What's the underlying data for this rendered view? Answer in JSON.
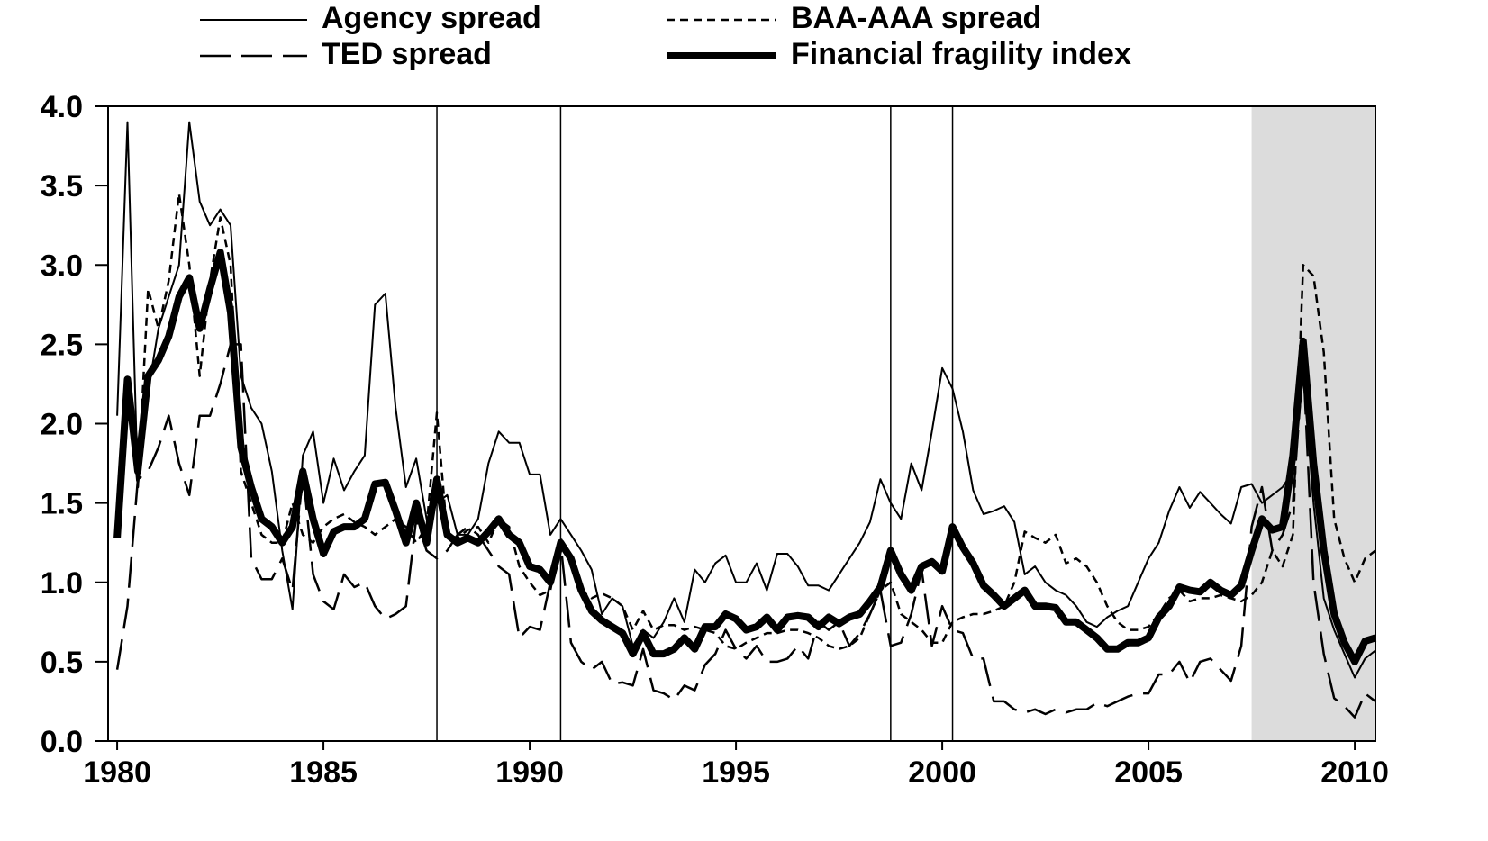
{
  "chart_data": {
    "type": "line",
    "legend": "top",
    "xlim": [
      1979.78,
      2010.5
    ],
    "ylim": [
      0,
      4
    ],
    "xticks": [
      1980,
      1985,
      1990,
      1995,
      2000,
      2005,
      2010
    ],
    "yticks": [
      {
        "value": 0,
        "label": "0.0"
      },
      0.5,
      {
        "value": 1,
        "label": "1.0"
      },
      1.5,
      {
        "value": 2,
        "label": "2.0"
      },
      2.5,
      {
        "value": 3,
        "label": "3.0"
      },
      3.5,
      {
        "value": 4,
        "label": "4.0"
      }
    ],
    "vlines": [
      1987.75,
      1990.75,
      1998.75,
      2000.25
    ],
    "shade": [
      2007.5,
      2010.5
    ],
    "shade_color": "#dcdcdc",
    "x": [
      1980,
      1980.25,
      1980.5,
      1980.75,
      1981,
      1981.25,
      1981.5,
      1981.75,
      1982,
      1982.25,
      1982.5,
      1982.75,
      1983,
      1983.25,
      1983.5,
      1983.75,
      1984,
      1984.25,
      1984.5,
      1984.75,
      1985,
      1985.25,
      1985.5,
      1985.75,
      1986,
      1986.25,
      1986.5,
      1986.75,
      1987,
      1987.25,
      1987.5,
      1987.75,
      1988,
      1988.25,
      1988.5,
      1988.75,
      1989,
      1989.25,
      1989.5,
      1989.75,
      1990,
      1990.25,
      1990.5,
      1990.75,
      1991,
      1991.25,
      1991.5,
      1991.75,
      1992,
      1992.25,
      1992.5,
      1992.75,
      1993,
      1993.25,
      1993.5,
      1993.75,
      1994,
      1994.25,
      1994.5,
      1994.75,
      1995,
      1995.25,
      1995.5,
      1995.75,
      1996,
      1996.25,
      1996.5,
      1996.75,
      1997,
      1997.25,
      1997.5,
      1997.75,
      1998,
      1998.25,
      1998.5,
      1998.75,
      1999,
      1999.25,
      1999.5,
      1999.75,
      2000,
      2000.25,
      2000.5,
      2000.75,
      2001,
      2001.25,
      2001.5,
      2001.75,
      2002,
      2002.25,
      2002.5,
      2002.75,
      2003,
      2003.25,
      2003.5,
      2003.75,
      2004,
      2004.25,
      2004.5,
      2004.75,
      2005,
      2005.25,
      2005.5,
      2005.75,
      2006,
      2006.25,
      2006.5,
      2006.75,
      2007,
      2007.25,
      2007.5,
      2007.75,
      2008,
      2008.25,
      2008.5,
      2008.75,
      2009,
      2009.25,
      2009.5,
      2009.75,
      2010,
      2010.25,
      2010.5
    ],
    "series": [
      {
        "name": "Agency spread",
        "color": "#000000",
        "style": "solid",
        "width": 2,
        "values": [
          2.05,
          3.9,
          1.6,
          2.2,
          2.6,
          2.8,
          3.0,
          3.9,
          3.4,
          3.25,
          3.35,
          3.25,
          2.3,
          2.1,
          2.0,
          1.7,
          1.2,
          0.83,
          1.8,
          1.95,
          1.5,
          1.78,
          1.58,
          1.7,
          1.8,
          2.75,
          2.82,
          2.1,
          1.6,
          1.78,
          1.4,
          1.5,
          1.55,
          1.3,
          1.3,
          1.4,
          1.75,
          1.95,
          1.88,
          1.88,
          1.68,
          1.68,
          1.3,
          1.4,
          1.3,
          1.2,
          1.08,
          0.8,
          0.9,
          0.85,
          0.6,
          0.7,
          0.65,
          0.75,
          0.9,
          0.75,
          1.08,
          1.0,
          1.12,
          1.17,
          1.0,
          1.0,
          1.12,
          0.95,
          1.18,
          1.18,
          1.1,
          0.98,
          0.98,
          0.95,
          1.05,
          1.15,
          1.25,
          1.38,
          1.65,
          1.5,
          1.4,
          1.75,
          1.58,
          1.95,
          2.35,
          2.22,
          1.95,
          1.58,
          1.43,
          1.45,
          1.48,
          1.38,
          1.05,
          1.1,
          1.0,
          0.95,
          0.92,
          0.85,
          0.75,
          0.72,
          0.78,
          0.82,
          0.85,
          1.0,
          1.15,
          1.25,
          1.45,
          1.6,
          1.47,
          1.57,
          1.5,
          1.43,
          1.37,
          1.6,
          1.62,
          1.5,
          1.55,
          1.6,
          1.7,
          2.3,
          1.5,
          0.9,
          0.7,
          0.55,
          0.4,
          0.52,
          0.57
        ]
      },
      {
        "name": "BAA-AAA spread",
        "color": "#000000",
        "style": "dash",
        "width": 2.5,
        "values": [
          1.3,
          2.3,
          1.6,
          2.85,
          2.6,
          2.9,
          3.45,
          3.0,
          2.3,
          2.9,
          3.3,
          3.0,
          1.7,
          1.5,
          1.3,
          1.25,
          1.25,
          1.5,
          1.3,
          1.25,
          1.35,
          1.4,
          1.43,
          1.38,
          1.35,
          1.3,
          1.35,
          1.4,
          1.35,
          1.25,
          1.35,
          2.07,
          1.3,
          1.28,
          1.33,
          1.35,
          1.25,
          1.4,
          1.35,
          1.1,
          1.0,
          0.92,
          0.95,
          1.28,
          1.1,
          0.95,
          0.9,
          0.93,
          0.9,
          0.85,
          0.7,
          0.82,
          0.7,
          0.73,
          0.73,
          0.7,
          0.72,
          0.7,
          0.68,
          0.6,
          0.58,
          0.62,
          0.65,
          0.68,
          0.68,
          0.7,
          0.7,
          0.68,
          0.65,
          0.6,
          0.58,
          0.6,
          0.65,
          0.8,
          0.95,
          1.0,
          0.8,
          0.75,
          0.7,
          0.62,
          0.62,
          0.75,
          0.78,
          0.8,
          0.8,
          0.82,
          0.85,
          1.0,
          1.32,
          1.28,
          1.25,
          1.3,
          1.12,
          1.15,
          1.1,
          1.0,
          0.85,
          0.75,
          0.7,
          0.7,
          0.72,
          0.8,
          0.9,
          0.95,
          0.88,
          0.9,
          0.9,
          0.92,
          0.9,
          0.88,
          0.92,
          1.0,
          1.2,
          1.1,
          1.3,
          3.0,
          2.93,
          2.45,
          1.4,
          1.15,
          1.0,
          1.15,
          1.2
        ]
      },
      {
        "name": "TED spread",
        "color": "#000000",
        "style": "longdash",
        "width": 2.5,
        "values": [
          0.45,
          0.85,
          1.65,
          1.7,
          1.85,
          2.05,
          1.75,
          1.55,
          2.05,
          2.05,
          2.25,
          2.5,
          2.5,
          1.15,
          1.02,
          1.02,
          1.15,
          0.95,
          1.7,
          1.05,
          0.88,
          0.83,
          1.05,
          0.97,
          1.0,
          0.85,
          0.77,
          0.8,
          0.85,
          1.4,
          1.2,
          1.15,
          1.2,
          1.3,
          1.35,
          1.3,
          1.2,
          1.1,
          1.05,
          0.65,
          0.72,
          0.7,
          1.0,
          1.25,
          0.62,
          0.5,
          0.45,
          0.5,
          0.36,
          0.37,
          0.35,
          0.58,
          0.32,
          0.3,
          0.26,
          0.35,
          0.32,
          0.48,
          0.55,
          0.7,
          0.58,
          0.52,
          0.6,
          0.5,
          0.5,
          0.52,
          0.6,
          0.52,
          0.75,
          0.7,
          0.75,
          0.6,
          0.68,
          0.8,
          0.95,
          0.6,
          0.62,
          0.8,
          1.08,
          0.6,
          0.85,
          0.7,
          0.68,
          0.52,
          0.52,
          0.25,
          0.25,
          0.2,
          0.18,
          0.2,
          0.17,
          0.2,
          0.18,
          0.2,
          0.2,
          0.24,
          0.22,
          0.25,
          0.28,
          0.3,
          0.3,
          0.42,
          0.42,
          0.5,
          0.37,
          0.5,
          0.52,
          0.45,
          0.38,
          0.6,
          1.35,
          1.6,
          1.2,
          1.3,
          1.5,
          2.4,
          1.0,
          0.55,
          0.27,
          0.22,
          0.15,
          0.3,
          0.25
        ]
      },
      {
        "name": "Financial fragility index",
        "color": "#000000",
        "style": "solid",
        "width": 8,
        "values": [
          1.28,
          2.28,
          1.7,
          2.3,
          2.4,
          2.55,
          2.8,
          2.92,
          2.6,
          2.85,
          3.08,
          2.7,
          1.85,
          1.6,
          1.4,
          1.35,
          1.25,
          1.35,
          1.7,
          1.4,
          1.18,
          1.32,
          1.35,
          1.35,
          1.4,
          1.62,
          1.63,
          1.45,
          1.25,
          1.5,
          1.25,
          1.65,
          1.3,
          1.25,
          1.28,
          1.25,
          1.32,
          1.4,
          1.3,
          1.25,
          1.1,
          1.08,
          1.0,
          1.25,
          1.15,
          0.95,
          0.82,
          0.76,
          0.72,
          0.68,
          0.55,
          0.68,
          0.55,
          0.55,
          0.58,
          0.65,
          0.58,
          0.72,
          0.72,
          0.8,
          0.77,
          0.7,
          0.72,
          0.78,
          0.7,
          0.78,
          0.79,
          0.78,
          0.72,
          0.78,
          0.74,
          0.78,
          0.8,
          0.88,
          0.97,
          1.2,
          1.05,
          0.95,
          1.1,
          1.13,
          1.07,
          1.35,
          1.22,
          1.12,
          0.98,
          0.92,
          0.85,
          0.9,
          0.95,
          0.85,
          0.85,
          0.84,
          0.75,
          0.75,
          0.7,
          0.65,
          0.58,
          0.58,
          0.62,
          0.62,
          0.65,
          0.78,
          0.85,
          0.97,
          0.95,
          0.94,
          1.0,
          0.95,
          0.92,
          0.98,
          1.2,
          1.4,
          1.33,
          1.35,
          1.8,
          2.52,
          1.75,
          1.2,
          0.8,
          0.62,
          0.5,
          0.63,
          0.65
        ]
      }
    ]
  }
}
